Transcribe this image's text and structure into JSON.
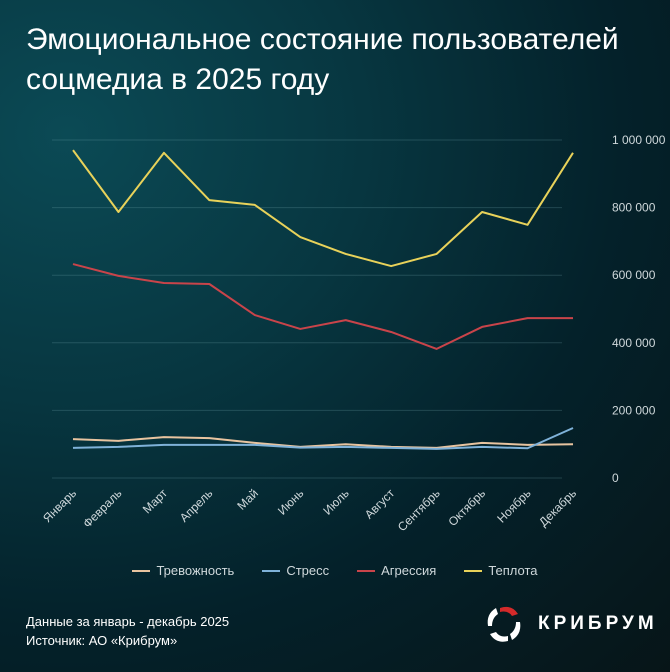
{
  "title": "Эмоциональное состояние пользователей соцмедиа в 2025 году",
  "footer": {
    "line1": "Данные за январь - декабрь 2025",
    "line2": "Источник: АО «Крибрум»"
  },
  "logo": {
    "text": "КРИБРУМ"
  },
  "chart_data": {
    "type": "line",
    "title": "Эмоциональное состояние пользователей соцмедиа в 2025 году",
    "categories": [
      "Январь",
      "Февраль",
      "Март",
      "Апрель",
      "Май",
      "Июнь",
      "Июль",
      "Август",
      "Сентябрь",
      "Октябрь",
      "Ноябрь",
      "Декабрь"
    ],
    "ylim": [
      0,
      1000000
    ],
    "yticks": [
      0,
      200000,
      400000,
      600000,
      800000,
      1000000
    ],
    "ytick_labels": [
      "0",
      "200 000",
      "400 000",
      "600 000",
      "800 000",
      "1 000 000"
    ],
    "grid": true,
    "legend_position": "bottom",
    "series": [
      {
        "name": "Тревожность",
        "color": "#e8c4a0",
        "values": [
          115000,
          110000,
          121000,
          118000,
          104000,
          92000,
          100000,
          92000,
          89000,
          104000,
          98000,
          100000
        ]
      },
      {
        "name": "Стресс",
        "color": "#7fb2d9",
        "values": [
          89000,
          92000,
          98000,
          98000,
          98000,
          90000,
          92000,
          89000,
          86000,
          92000,
          88000,
          148000
        ]
      },
      {
        "name": "Агрессия",
        "color": "#c9444a",
        "values": [
          633000,
          598000,
          577000,
          574000,
          482000,
          441000,
          467000,
          432000,
          382000,
          447000,
          473000,
          473000
        ]
      },
      {
        "name": "Теплота",
        "color": "#e8d25a",
        "values": [
          970000,
          787000,
          962000,
          822000,
          808000,
          713000,
          663000,
          627000,
          663000,
          787000,
          749000,
          962000
        ]
      }
    ]
  }
}
